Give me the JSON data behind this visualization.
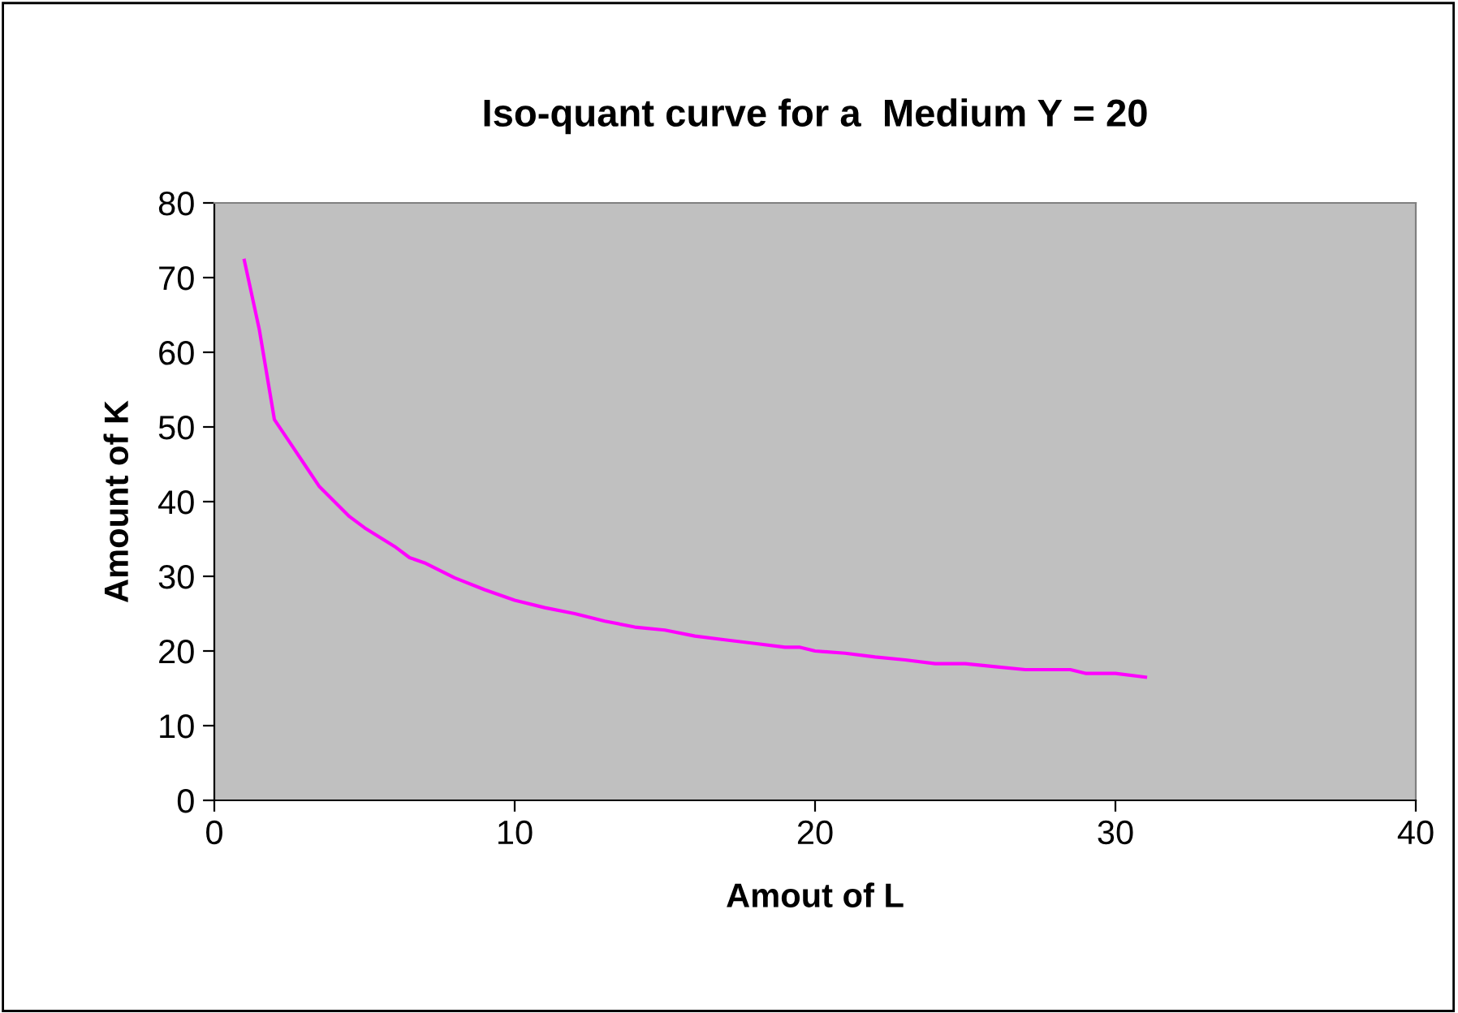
{
  "chart_data": {
    "type": "line",
    "title": "Iso-quant curve for a  Medium Y = 20",
    "xlabel": "Amout of L",
    "ylabel": "Amount of K",
    "x": [
      1,
      1.5,
      2,
      2.5,
      3,
      3.5,
      4,
      4.5,
      5,
      6,
      6.5,
      7,
      8,
      9,
      10,
      11,
      12,
      13,
      14,
      15,
      16,
      17,
      18,
      19,
      19.5,
      20,
      21,
      22,
      23,
      24,
      25,
      26,
      27,
      28,
      28.5,
      29,
      30,
      31
    ],
    "series": [
      {
        "color": "#ff00ff",
        "values": [
          72.3,
          63,
          51,
          48,
          45,
          42,
          40,
          38,
          36.5,
          34,
          32.5,
          31.8,
          29.8,
          28.2,
          26.8,
          25.8,
          25,
          24,
          23.2,
          22.8,
          22,
          21.5,
          21,
          20.5,
          20.5,
          20,
          19.7,
          19.2,
          18.8,
          18.3,
          18.3,
          17.9,
          17.5,
          17.5,
          17.5,
          17,
          17,
          16.5
        ]
      }
    ],
    "xlim": [
      0,
      40
    ],
    "xticks": [
      0,
      10,
      20,
      30,
      40
    ],
    "ylim": [
      0,
      80
    ],
    "yticks": [
      0,
      10,
      20,
      30,
      40,
      50,
      60,
      70,
      80
    ],
    "grid": false,
    "legend": false,
    "marker": "none",
    "line_style": "solid"
  }
}
